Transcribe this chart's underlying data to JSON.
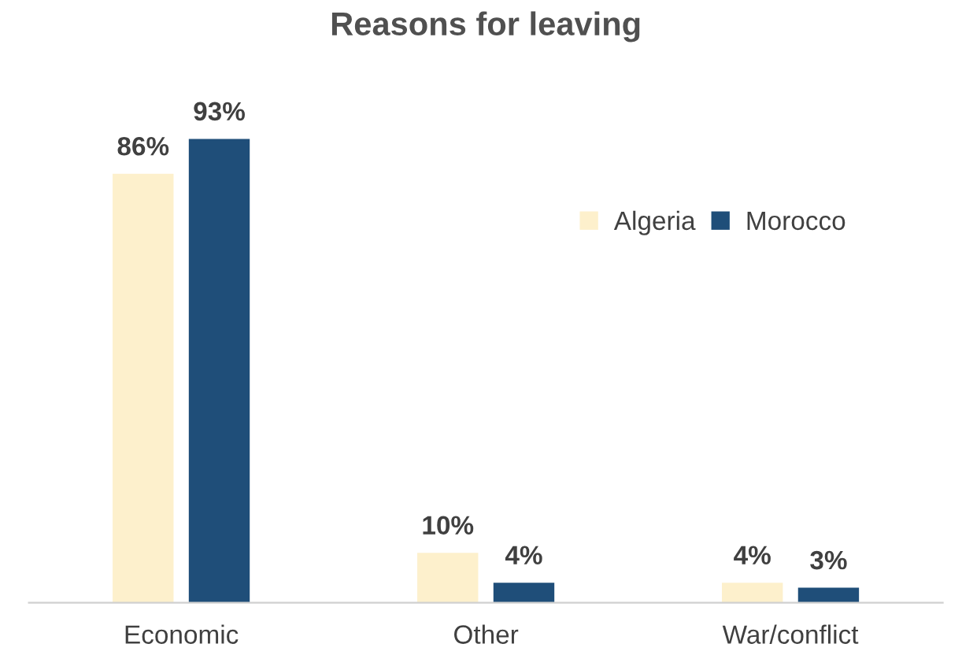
{
  "chart_data": {
    "type": "bar",
    "title": "Reasons for leaving",
    "categories": [
      "Economic",
      "Other",
      "War/conflict"
    ],
    "series": [
      {
        "name": "Algeria",
        "color": "#fdf0cc",
        "values": [
          86,
          10,
          4
        ],
        "value_labels": [
          "86%",
          "10%",
          "4%"
        ]
      },
      {
        "name": "Morocco",
        "color": "#1f4e79",
        "values": [
          93,
          4,
          3
        ],
        "value_labels": [
          "93%",
          "4%",
          "3%"
        ]
      }
    ],
    "legend": "top right"
  }
}
